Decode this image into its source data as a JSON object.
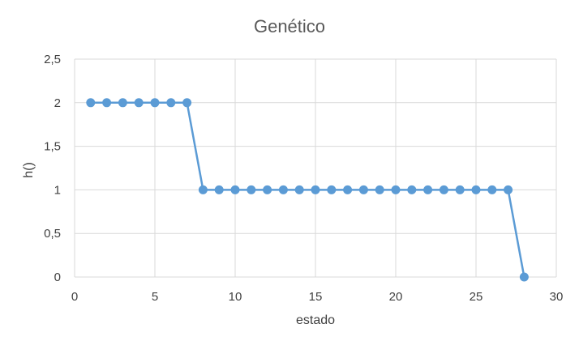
{
  "chart_data": {
    "type": "scatter",
    "title": "Genético",
    "xlabel": "estado",
    "ylabel": "h()",
    "xlim": [
      0,
      30
    ],
    "ylim": [
      0,
      2.5
    ],
    "x_ticks": [
      "0",
      "5",
      "10",
      "15",
      "20",
      "25",
      "30"
    ],
    "y_ticks": [
      "0",
      "0,5",
      "1",
      "1,5",
      "2",
      "2,5"
    ],
    "grid": true,
    "legend": "none",
    "series_color": "#5b9bd5",
    "series": [
      {
        "x": [
          1,
          2,
          3,
          4,
          5,
          6,
          7,
          8,
          9,
          10,
          11,
          12,
          13,
          14,
          15,
          16,
          17,
          18,
          19,
          20,
          21,
          22,
          23,
          24,
          25,
          26,
          27,
          28
        ],
        "y": [
          2,
          2,
          2,
          2,
          2,
          2,
          2,
          1,
          1,
          1,
          1,
          1,
          1,
          1,
          1,
          1,
          1,
          1,
          1,
          1,
          1,
          1,
          1,
          1,
          1,
          1,
          1,
          0
        ]
      }
    ]
  }
}
